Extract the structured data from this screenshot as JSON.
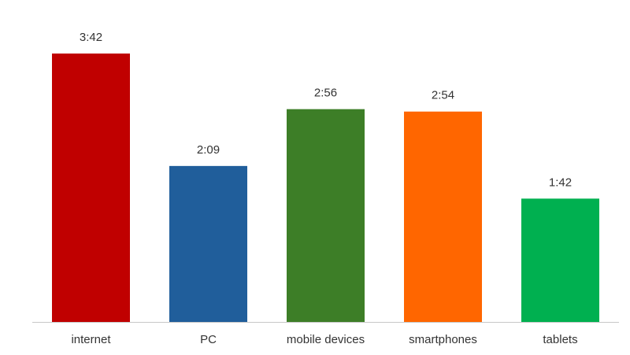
{
  "chart_data": {
    "type": "bar",
    "categories": [
      "internet",
      "PC",
      "mobile devices",
      "smartphones",
      "tablets"
    ],
    "values": [
      222,
      129,
      176,
      174,
      102
    ],
    "value_labels": [
      "3:42",
      "2:09",
      "2:56",
      "2:54",
      "1:42"
    ],
    "colors": [
      "#c00000",
      "#205e9b",
      "#3d7e27",
      "#ff6600",
      "#00b050"
    ]
  }
}
